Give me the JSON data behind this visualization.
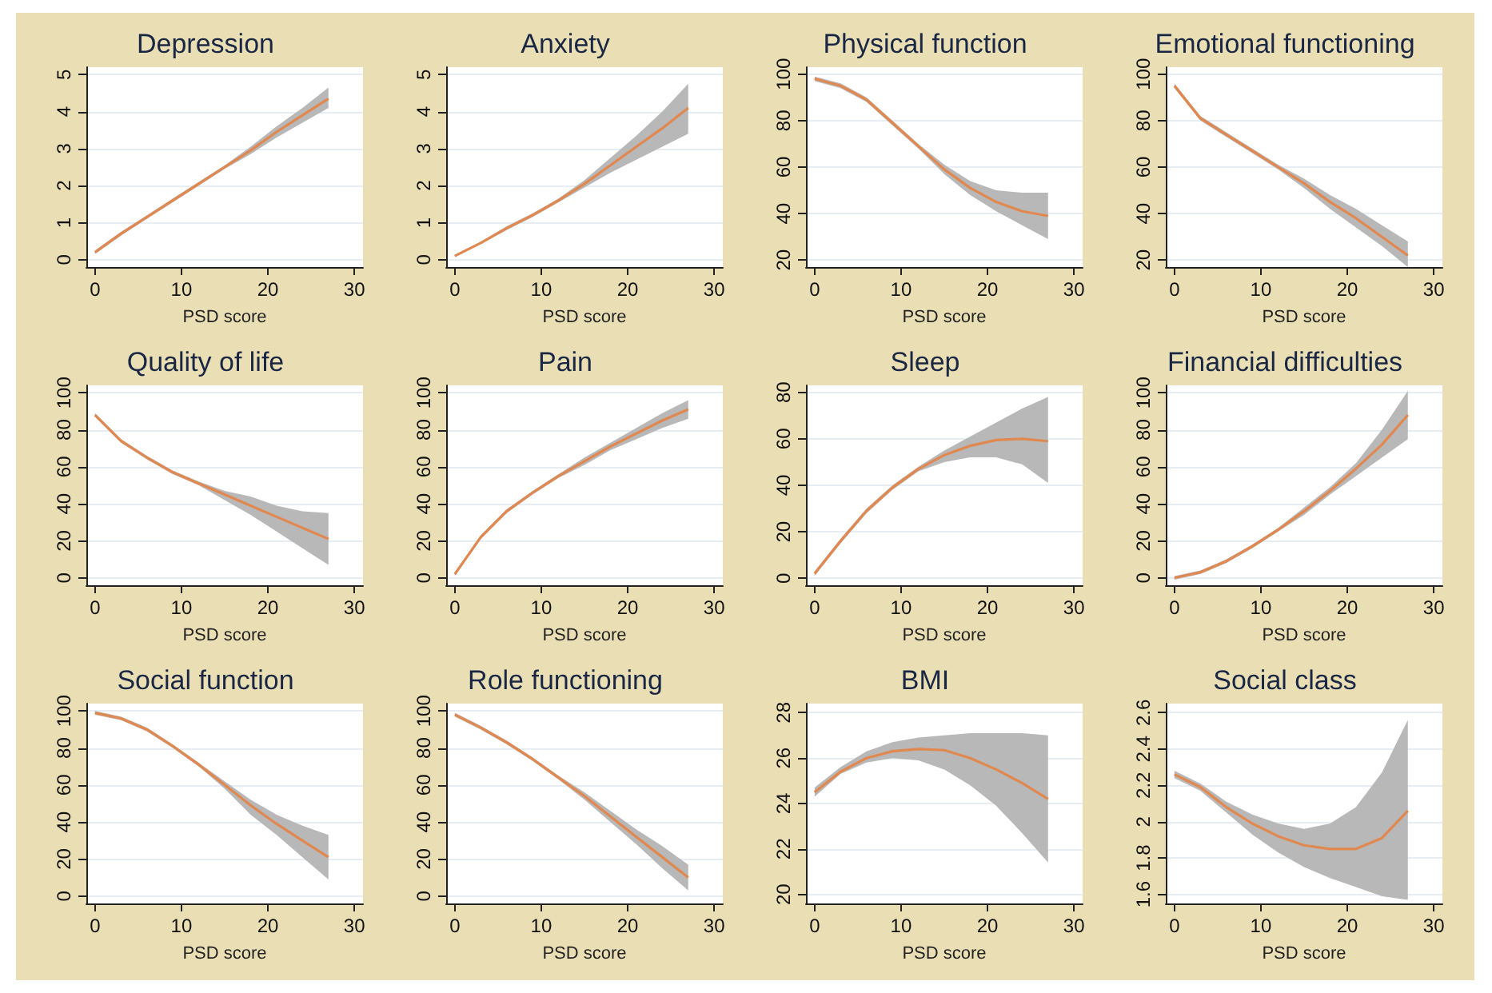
{
  "chart_data": [
    {
      "type": "line",
      "title": "Depression",
      "xlabel": "PSD score",
      "x": [
        0,
        3,
        6,
        9,
        12,
        15,
        18,
        21,
        24,
        27
      ],
      "xlim": [
        -1,
        31
      ],
      "xticks": [
        0,
        10,
        20,
        30
      ],
      "ylim": [
        -0.2,
        5.2
      ],
      "yticks": [
        0,
        1,
        2,
        3,
        4,
        5
      ],
      "grid": "y",
      "series": [
        {
          "color": "#e0884f",
          "values": [
            0.2,
            0.7,
            1.15,
            1.6,
            2.05,
            2.5,
            2.95,
            3.45,
            3.9,
            4.35
          ],
          "lower": [
            0.15,
            0.65,
            1.1,
            1.55,
            2.0,
            2.45,
            2.85,
            3.3,
            3.7,
            4.1
          ],
          "upper": [
            0.25,
            0.75,
            1.2,
            1.65,
            2.1,
            2.55,
            3.05,
            3.6,
            4.1,
            4.65
          ]
        }
      ]
    },
    {
      "type": "line",
      "title": "Anxiety",
      "xlabel": "PSD score",
      "x": [
        0,
        3,
        6,
        9,
        12,
        15,
        18,
        21,
        24,
        27
      ],
      "xlim": [
        -1,
        31
      ],
      "xticks": [
        0,
        10,
        20,
        30
      ],
      "ylim": [
        -0.2,
        5.2
      ],
      "yticks": [
        0,
        1,
        2,
        3,
        4,
        5
      ],
      "grid": "y",
      "series": [
        {
          "color": "#e0884f",
          "values": [
            0.1,
            0.45,
            0.85,
            1.2,
            1.6,
            2.05,
            2.55,
            3.05,
            3.55,
            4.1
          ],
          "lower": [
            0.08,
            0.42,
            0.8,
            1.15,
            1.55,
            1.95,
            2.35,
            2.7,
            3.05,
            3.4
          ],
          "upper": [
            0.12,
            0.48,
            0.9,
            1.25,
            1.65,
            2.15,
            2.75,
            3.35,
            4.0,
            4.75
          ]
        }
      ]
    },
    {
      "type": "line",
      "title": "Physical function",
      "xlabel": "PSD score",
      "x": [
        0,
        3,
        6,
        9,
        12,
        15,
        18,
        21,
        24,
        27
      ],
      "xlim": [
        -1,
        31
      ],
      "xticks": [
        0,
        10,
        20,
        30
      ],
      "ylim": [
        17,
        103
      ],
      "yticks": [
        20,
        40,
        60,
        80,
        100
      ],
      "grid": "y",
      "series": [
        {
          "color": "#e0884f",
          "values": [
            98,
            95,
            89,
            79,
            69,
            59,
            51,
            45,
            41,
            39
          ],
          "lower": [
            97,
            94,
            88,
            78,
            68,
            57,
            48,
            41,
            35,
            29
          ],
          "upper": [
            99,
            96,
            90,
            80,
            70,
            61,
            54,
            50,
            49,
            49
          ]
        }
      ]
    },
    {
      "type": "line",
      "title": "Emotional functioning",
      "xlabel": "PSD score",
      "x": [
        0,
        3,
        6,
        9,
        12,
        15,
        18,
        21,
        24,
        27
      ],
      "xlim": [
        -1,
        31
      ],
      "xticks": [
        0,
        10,
        20,
        30
      ],
      "ylim": [
        17,
        103
      ],
      "yticks": [
        20,
        40,
        60,
        80,
        100
      ],
      "grid": "y",
      "series": [
        {
          "color": "#e0884f",
          "values": [
            95,
            81,
            74,
            67,
            60,
            53,
            45,
            38,
            30,
            22
          ],
          "lower": [
            94,
            80,
            73,
            66,
            59,
            51,
            42,
            34,
            26,
            17
          ],
          "upper": [
            96,
            82,
            75,
            68,
            61,
            55,
            48,
            42,
            35,
            28
          ]
        }
      ]
    },
    {
      "type": "line",
      "title": "Quality of life",
      "xlabel": "PSD score",
      "x": [
        0,
        3,
        6,
        9,
        12,
        15,
        18,
        21,
        24,
        27
      ],
      "xlim": [
        -1,
        31
      ],
      "xticks": [
        0,
        10,
        20,
        30
      ],
      "ylim": [
        -4,
        104
      ],
      "yticks": [
        0,
        20,
        40,
        60,
        80,
        100
      ],
      "grid": "y",
      "series": [
        {
          "color": "#e0884f",
          "values": [
            88,
            74,
            65,
            57,
            51,
            45,
            39,
            33,
            27,
            21
          ],
          "lower": [
            87,
            73,
            64,
            56,
            50,
            42,
            34,
            25,
            16,
            7
          ],
          "upper": [
            89,
            75,
            66,
            58,
            52,
            47,
            44,
            39,
            36,
            35
          ]
        }
      ]
    },
    {
      "type": "line",
      "title": "Pain",
      "xlabel": "PSD score",
      "x": [
        0,
        3,
        6,
        9,
        12,
        15,
        18,
        21,
        24,
        27
      ],
      "xlim": [
        -1,
        31
      ],
      "xticks": [
        0,
        10,
        20,
        30
      ],
      "ylim": [
        -4,
        104
      ],
      "yticks": [
        0,
        20,
        40,
        60,
        80,
        100
      ],
      "grid": "y",
      "series": [
        {
          "color": "#e0884f",
          "values": [
            2,
            22,
            36,
            46,
            55,
            63,
            71,
            78,
            85,
            91
          ],
          "lower": [
            1,
            21,
            35,
            45,
            54,
            61,
            69,
            75,
            81,
            86
          ],
          "upper": [
            3,
            23,
            37,
            47,
            56,
            65,
            73,
            81,
            89,
            96
          ]
        }
      ]
    },
    {
      "type": "line",
      "title": "Sleep",
      "xlabel": "PSD score",
      "x": [
        0,
        3,
        6,
        9,
        12,
        15,
        18,
        21,
        24,
        27
      ],
      "xlim": [
        -1,
        31
      ],
      "xticks": [
        0,
        10,
        20,
        30
      ],
      "ylim": [
        -3,
        83
      ],
      "yticks": [
        0,
        20,
        40,
        60,
        80
      ],
      "grid": "y",
      "series": [
        {
          "color": "#e0884f",
          "values": [
            2,
            16,
            29,
            39,
            47,
            53,
            57,
            59.5,
            60,
            59
          ],
          "lower": [
            1,
            15,
            28,
            38,
            46,
            50,
            52,
            52,
            49,
            41
          ],
          "upper": [
            3,
            17,
            30,
            40,
            48,
            55,
            61,
            67,
            73,
            78
          ]
        }
      ]
    },
    {
      "type": "line",
      "title": "Financial difficulties",
      "xlabel": "PSD score",
      "x": [
        0,
        3,
        6,
        9,
        12,
        15,
        18,
        21,
        24,
        27
      ],
      "xlim": [
        -1,
        31
      ],
      "xticks": [
        0,
        10,
        20,
        30
      ],
      "ylim": [
        -4,
        104
      ],
      "yticks": [
        0,
        20,
        40,
        60,
        80,
        100
      ],
      "grid": "y",
      "series": [
        {
          "color": "#e0884f",
          "values": [
            0,
            3,
            9,
            17,
            26,
            36,
            47,
            59,
            72,
            88
          ],
          "lower": [
            -1,
            2,
            8,
            16,
            25,
            34,
            45,
            55,
            65,
            75
          ],
          "upper": [
            1,
            4,
            10,
            18,
            27,
            38,
            49,
            62,
            80,
            101
          ]
        }
      ]
    },
    {
      "type": "line",
      "title": "Social function",
      "xlabel": "PSD score",
      "x": [
        0,
        3,
        6,
        9,
        12,
        15,
        18,
        21,
        24,
        27
      ],
      "xlim": [
        -1,
        31
      ],
      "xticks": [
        0,
        10,
        20,
        30
      ],
      "ylim": [
        -4,
        104
      ],
      "yticks": [
        0,
        20,
        40,
        60,
        80,
        100
      ],
      "grid": "y",
      "series": [
        {
          "color": "#e0884f",
          "values": [
            99,
            96,
            90,
            81,
            71,
            60,
            49,
            39,
            30,
            21
          ],
          "lower": [
            98,
            95,
            89,
            80,
            70,
            58,
            44,
            33,
            21,
            9
          ],
          "upper": [
            100,
            97,
            91,
            82,
            72,
            62,
            52,
            44,
            38,
            33
          ]
        }
      ]
    },
    {
      "type": "line",
      "title": "Role functioning",
      "xlabel": "PSD score",
      "x": [
        0,
        3,
        6,
        9,
        12,
        15,
        18,
        21,
        24,
        27
      ],
      "xlim": [
        -1,
        31
      ],
      "xticks": [
        0,
        10,
        20,
        30
      ],
      "ylim": [
        -4,
        104
      ],
      "yticks": [
        0,
        20,
        40,
        60,
        80,
        100
      ],
      "grid": "y",
      "series": [
        {
          "color": "#e0884f",
          "values": [
            98,
            91,
            83,
            74,
            64,
            54,
            43,
            32,
            21,
            10
          ],
          "lower": [
            97,
            90,
            82,
            73,
            63,
            52,
            40,
            28,
            15,
            3
          ],
          "upper": [
            99,
            92,
            84,
            75,
            65,
            56,
            46,
            36,
            27,
            17
          ]
        }
      ]
    },
    {
      "type": "line",
      "title": "BMI",
      "xlabel": "PSD score",
      "x": [
        0,
        3,
        6,
        9,
        12,
        15,
        18,
        21,
        24,
        27
      ],
      "xlim": [
        -1,
        31
      ],
      "xticks": [
        0,
        10,
        20,
        30
      ],
      "ylim": [
        19.6,
        28.4
      ],
      "yticks": [
        20,
        22,
        24,
        26,
        28
      ],
      "grid": "y",
      "series": [
        {
          "color": "#e0884f",
          "values": [
            24.5,
            25.4,
            26.0,
            26.3,
            26.4,
            26.35,
            26.0,
            25.5,
            24.9,
            24.2
          ],
          "lower": [
            24.3,
            25.3,
            25.8,
            26.0,
            25.9,
            25.5,
            24.8,
            23.9,
            22.7,
            21.4
          ],
          "upper": [
            24.7,
            25.6,
            26.3,
            26.7,
            26.9,
            27.0,
            27.1,
            27.1,
            27.1,
            27.0
          ]
        }
      ]
    },
    {
      "type": "line",
      "title": "Social class",
      "xlabel": "PSD score",
      "x": [
        0,
        3,
        6,
        9,
        12,
        15,
        18,
        21,
        24,
        27
      ],
      "xlim": [
        -1,
        31
      ],
      "xticks": [
        0,
        10,
        20,
        30
      ],
      "ylim": [
        1.55,
        2.65
      ],
      "yticks": [
        1.6,
        1.8,
        2,
        2.2,
        2.4,
        2.6
      ],
      "grid": "y",
      "series": [
        {
          "color": "#e0884f",
          "values": [
            2.26,
            2.19,
            2.08,
            1.99,
            1.92,
            1.87,
            1.85,
            1.85,
            1.91,
            2.06
          ],
          "lower": [
            2.24,
            2.17,
            2.05,
            1.93,
            1.83,
            1.75,
            1.69,
            1.64,
            1.59,
            1.57
          ],
          "upper": [
            2.28,
            2.21,
            2.11,
            2.04,
            1.99,
            1.96,
            1.99,
            2.08,
            2.27,
            2.56
          ]
        }
      ]
    }
  ]
}
